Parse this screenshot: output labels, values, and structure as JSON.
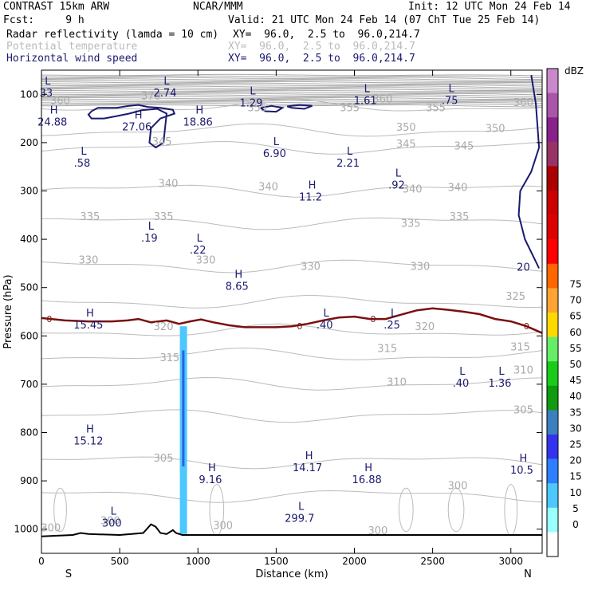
{
  "header": {
    "title_left": "CONTRAST 15km ARW",
    "title_center": "NCAR/MMM",
    "init": "Init: 12 UTC Mon 24 Feb 14",
    "fcst": "Fcst:     9 h",
    "valid": "Valid: 21 UTC Mon 24 Feb 14 (07 ChT Tue 25 Feb 14)",
    "fields": [
      {
        "label": "Radar reflectivity (lamda = 10 cm)",
        "xy": "XY=  96.0,  2.5 to  96.0,214.7"
      },
      {
        "label": "Potential temperature",
        "xy": "XY=  96.0,  2.5 to  96.0,214.7"
      },
      {
        "label": "Horizontal wind speed",
        "xy": "XY=  96.0,  2.5 to  96.0,214.7"
      }
    ]
  },
  "chart_data": {
    "type": "cross-section",
    "xlabel": "Distance (km)",
    "ylabel": "Pressure (hPa)",
    "xlim": [
      0,
      3200
    ],
    "ylim": [
      1050,
      50
    ],
    "x_ticks": [
      "0",
      "500",
      "1000",
      "1500",
      "2000",
      "2500",
      "3000"
    ],
    "y_ticks": [
      "100",
      "200",
      "300",
      "400",
      "500",
      "600",
      "700",
      "800",
      "900",
      "1000"
    ],
    "end_labels": {
      "left": "S",
      "right": "N"
    },
    "colorbar": {
      "unit": "dBZ",
      "labels": [
        "0",
        "5",
        "10",
        "15",
        "20",
        "25",
        "30",
        "35",
        "40",
        "45",
        "50",
        "55",
        "60",
        "65",
        "70",
        "75"
      ],
      "colors": [
        "#ffffff",
        "#99ffff",
        "#4cc8ff",
        "#2d7fff",
        "#3333ee",
        "#3c7fbf",
        "#0f9a0f",
        "#19cc19",
        "#66ee66",
        "#ffd800",
        "#ffa333",
        "#ff6600",
        "#ff0000",
        "#dd0000",
        "#cc0000",
        "#aa0000",
        "#993366",
        "#882288",
        "#aa55aa",
        "#cc88cc"
      ]
    },
    "theta_labels": [
      {
        "text": "370",
        "x": 700,
        "p": 110
      },
      {
        "text": "360",
        "x": 120,
        "p": 120
      },
      {
        "text": "360",
        "x": 2180,
        "p": 117
      },
      {
        "text": "360",
        "x": 3080,
        "p": 124
      },
      {
        "text": "355",
        "x": 1380,
        "p": 135
      },
      {
        "text": "355",
        "x": 1970,
        "p": 135
      },
      {
        "text": "355",
        "x": 2520,
        "p": 135
      },
      {
        "text": "350",
        "x": 2330,
        "p": 175
      },
      {
        "text": "350",
        "x": 2900,
        "p": 178
      },
      {
        "text": "345",
        "x": 770,
        "p": 205
      },
      {
        "text": "345",
        "x": 2330,
        "p": 210
      },
      {
        "text": "345",
        "x": 2700,
        "p": 214
      },
      {
        "text": "340",
        "x": 810,
        "p": 292
      },
      {
        "text": "340",
        "x": 1450,
        "p": 298
      },
      {
        "text": "340",
        "x": 2370,
        "p": 303
      },
      {
        "text": "340",
        "x": 2660,
        "p": 300
      },
      {
        "text": "335",
        "x": 310,
        "p": 360
      },
      {
        "text": "335",
        "x": 780,
        "p": 360
      },
      {
        "text": "335",
        "x": 2360,
        "p": 374
      },
      {
        "text": "335",
        "x": 2670,
        "p": 360
      },
      {
        "text": "330",
        "x": 300,
        "p": 450
      },
      {
        "text": "330",
        "x": 1050,
        "p": 450
      },
      {
        "text": "330",
        "x": 1720,
        "p": 463
      },
      {
        "text": "330",
        "x": 2420,
        "p": 463
      },
      {
        "text": "325",
        "x": 3030,
        "p": 525
      },
      {
        "text": "320",
        "x": 780,
        "p": 588
      },
      {
        "text": "320",
        "x": 2450,
        "p": 588
      },
      {
        "text": "315",
        "x": 820,
        "p": 652
      },
      {
        "text": "315",
        "x": 2210,
        "p": 633
      },
      {
        "text": "315",
        "x": 3060,
        "p": 630
      },
      {
        "text": "310",
        "x": 2270,
        "p": 703
      },
      {
        "text": "310",
        "x": 3080,
        "p": 678
      },
      {
        "text": "305",
        "x": 3080,
        "p": 760
      },
      {
        "text": "305",
        "x": 780,
        "p": 860
      },
      {
        "text": "300",
        "x": 2660,
        "p": 917
      },
      {
        "text": "300",
        "x": 440,
        "p": 990
      },
      {
        "text": "300",
        "x": 1160,
        "p": 1000
      },
      {
        "text": "300",
        "x": 60,
        "p": 1005
      },
      {
        "text": "300",
        "x": 2150,
        "p": 1010
      }
    ],
    "wind_labels": [
      {
        "text": "20",
        "x": 3080,
        "p": 465
      }
    ],
    "zero_labels": [
      {
        "text": "0",
        "x": 50,
        "p": 565
      },
      {
        "text": "0",
        "x": 1650,
        "p": 580
      },
      {
        "text": "0",
        "x": 2120,
        "p": 565
      },
      {
        "text": "0",
        "x": 3100,
        "p": 580
      }
    ],
    "extrema": [
      {
        "kind": "L",
        "value": "33",
        "x": 40,
        "p": 80
      },
      {
        "kind": "L",
        "value": "2.74",
        "x": 800,
        "p": 80
      },
      {
        "kind": "L",
        "value": "1.29",
        "x": 1350,
        "p": 100
      },
      {
        "kind": "L",
        "value": "1.61",
        "x": 2080,
        "p": 95
      },
      {
        "kind": "L",
        "value": ".75",
        "x": 2620,
        "p": 95
      },
      {
        "kind": "H",
        "value": "24.88",
        "x": 80,
        "p": 140
      },
      {
        "kind": "H",
        "value": "27.06",
        "x": 620,
        "p": 150
      },
      {
        "kind": "H",
        "value": "18.86",
        "x": 1010,
        "p": 140
      },
      {
        "kind": "L",
        "value": "6.90",
        "x": 1500,
        "p": 205
      },
      {
        "kind": "L",
        "value": ".58",
        "x": 270,
        "p": 225
      },
      {
        "kind": "L",
        "value": "2.21",
        "x": 1970,
        "p": 225
      },
      {
        "kind": "L",
        "value": ".92",
        "x": 2280,
        "p": 270
      },
      {
        "kind": "H",
        "value": "11.2",
        "x": 1730,
        "p": 295
      },
      {
        "kind": "L",
        "value": ".19",
        "x": 700,
        "p": 380
      },
      {
        "kind": "L",
        "value": ".22",
        "x": 1010,
        "p": 405
      },
      {
        "kind": "H",
        "value": "8.65",
        "x": 1260,
        "p": 480
      },
      {
        "kind": "H",
        "value": "15.45",
        "x": 310,
        "p": 560
      },
      {
        "kind": "L",
        "value": ".40",
        "x": 1820,
        "p": 560
      },
      {
        "kind": "L",
        "value": ".25",
        "x": 2250,
        "p": 560
      },
      {
        "kind": "L",
        "value": ".40",
        "x": 2690,
        "p": 680
      },
      {
        "kind": "L",
        "value": "1.36",
        "x": 2940,
        "p": 680
      },
      {
        "kind": "H",
        "value": "15.12",
        "x": 310,
        "p": 800
      },
      {
        "kind": "H",
        "value": "14.17",
        "x": 1710,
        "p": 855
      },
      {
        "kind": "H",
        "value": "10.5",
        "x": 3080,
        "p": 860
      },
      {
        "kind": "H",
        "value": "9.16",
        "x": 1090,
        "p": 880
      },
      {
        "kind": "H",
        "value": "16.88",
        "x": 2090,
        "p": 880
      },
      {
        "kind": "L",
        "value": "299.7",
        "x": 1660,
        "p": 960
      },
      {
        "kind": "L",
        "value": "300",
        "x": 460,
        "p": 970
      }
    ],
    "zero_isotherm": [
      [
        0,
        563
      ],
      [
        150,
        568
      ],
      [
        300,
        570
      ],
      [
        450,
        570
      ],
      [
        550,
        568
      ],
      [
        620,
        565
      ],
      [
        700,
        572
      ],
      [
        800,
        568
      ],
      [
        880,
        575
      ],
      [
        950,
        570
      ],
      [
        1020,
        566
      ],
      [
        1100,
        572
      ],
      [
        1200,
        578
      ],
      [
        1300,
        582
      ],
      [
        1400,
        582
      ],
      [
        1500,
        582
      ],
      [
        1600,
        580
      ],
      [
        1700,
        575
      ],
      [
        1800,
        568
      ],
      [
        1900,
        562
      ],
      [
        2000,
        560
      ],
      [
        2100,
        565
      ],
      [
        2200,
        565
      ],
      [
        2300,
        556
      ],
      [
        2400,
        547
      ],
      [
        2500,
        543
      ],
      [
        2600,
        546
      ],
      [
        2700,
        550
      ],
      [
        2800,
        555
      ],
      [
        2900,
        565
      ],
      [
        3000,
        570
      ],
      [
        3100,
        580
      ],
      [
        3200,
        594
      ]
    ],
    "reflectivity_column": {
      "x": 905,
      "p_top": 580,
      "p_bottom": 1010,
      "core_top": 630,
      "core_bottom": 870
    },
    "surface_pressure": [
      [
        0,
        1015
      ],
      [
        200,
        1012
      ],
      [
        250,
        1008
      ],
      [
        300,
        1010
      ],
      [
        500,
        1012
      ],
      [
        650,
        1008
      ],
      [
        700,
        990
      ],
      [
        730,
        995
      ],
      [
        760,
        1008
      ],
      [
        800,
        1010
      ],
      [
        840,
        1002
      ],
      [
        860,
        1008
      ],
      [
        900,
        1012
      ],
      [
        1200,
        1012
      ],
      [
        2000,
        1012
      ],
      [
        3200,
        1012
      ]
    ]
  }
}
